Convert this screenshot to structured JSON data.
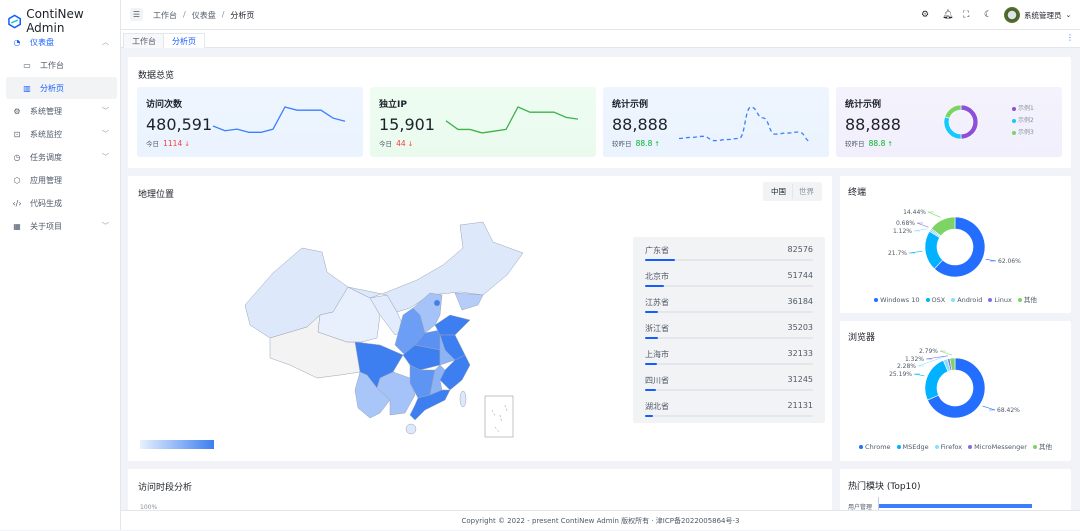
{
  "app": {
    "title": "ContiNew Admin"
  },
  "sidebar": {
    "items": [
      {
        "label": "仪表盘",
        "icon": "dashboard-icon",
        "expanded": true,
        "active": true
      },
      {
        "label": "工作台",
        "icon": "desktop-icon",
        "sub": true
      },
      {
        "label": "分析页",
        "icon": "bar-chart-icon",
        "sub": true,
        "selected": true
      },
      {
        "label": "系统管理",
        "icon": "settings-icon",
        "chevron": true
      },
      {
        "label": "系统监控",
        "icon": "monitor-icon",
        "chevron": true
      },
      {
        "label": "任务调度",
        "icon": "clock-icon",
        "chevron": true
      },
      {
        "label": "应用管理",
        "icon": "cube-icon"
      },
      {
        "label": "代码生成",
        "icon": "code-icon"
      },
      {
        "label": "关于项目",
        "icon": "apps-icon",
        "chevron": true
      }
    ]
  },
  "header": {
    "breadcrumb": [
      "工作台",
      "仪表盘",
      "分析页"
    ],
    "separator": "/",
    "user": "系统管理员"
  },
  "tabs": [
    {
      "label": "工作台"
    },
    {
      "label": "分析页",
      "active": true
    }
  ],
  "overview": {
    "title": "数据总览",
    "cards": [
      {
        "title": "访问次数",
        "value": "480,591",
        "sub_label": "今日",
        "sub_value": "1114",
        "trend": "down",
        "color": "#3c7eff",
        "bg": "#eaf3fe",
        "spark": [
          12,
          9,
          10,
          8,
          8,
          10,
          24,
          22,
          22,
          22,
          17,
          15
        ]
      },
      {
        "title": "独立IP",
        "value": "15,901",
        "sub_label": "今日",
        "sub_value": "44",
        "trend": "down",
        "color": "#3fb24a",
        "bg": "#eafbee",
        "spark": [
          14,
          9,
          9,
          7,
          8,
          9,
          22,
          19,
          19,
          19,
          16,
          15
        ]
      },
      {
        "title": "统计示例",
        "value": "88,888",
        "sub_label": "较昨日",
        "sub_value": "88.8",
        "trend": "up",
        "color": "#3c7eff",
        "bg": "#eaf3fe",
        "spark": [
          6,
          7,
          8,
          4,
          5,
          6,
          35,
          25,
          10,
          11,
          12,
          3
        ]
      },
      {
        "title": "统计示例",
        "value": "88,888",
        "sub_label": "较昨日",
        "sub_value": "88.8",
        "trend": "up",
        "bg": "#f1effc",
        "donut": [
          {
            "name": "示例1",
            "value": 50,
            "color": "#8d4eda"
          },
          {
            "name": "示例2",
            "value": 30,
            "color": "#14c9fe"
          },
          {
            "name": "示例3",
            "value": 20,
            "color": "#7bd463"
          }
        ]
      }
    ]
  },
  "geo": {
    "title": "地理位置",
    "toggle": [
      "中国",
      "世界"
    ],
    "toggle_active": "中国",
    "ranking": [
      {
        "name": "广东省",
        "value": 82576
      },
      {
        "name": "北京市",
        "value": 51744
      },
      {
        "name": "江苏省",
        "value": 36184
      },
      {
        "name": "浙江省",
        "value": 35203
      },
      {
        "name": "上海市",
        "value": 32133
      },
      {
        "name": "四川省",
        "value": 31245
      },
      {
        "name": "湖北省",
        "value": 21131
      }
    ],
    "ranking_max": 460000
  },
  "terminal": {
    "title": "终端",
    "slices": [
      {
        "name": "Windows 10",
        "value": 62.06,
        "label": "62.06%",
        "color": "#246eff"
      },
      {
        "name": "OSX",
        "value": 21.7,
        "label": "21.7%",
        "color": "#00b2ff"
      },
      {
        "name": "Android",
        "value": 1.12,
        "label": "1.12%",
        "color": "#81e2ff"
      },
      {
        "name": "Linux",
        "value": 0.68,
        "label": "0.68%",
        "color": "#846be2"
      },
      {
        "name": "其他",
        "value": 14.44,
        "label": "14.44%",
        "color": "#7bd463"
      }
    ]
  },
  "browser": {
    "title": "浏览器",
    "slices": [
      {
        "name": "Chrome",
        "value": 68.42,
        "label": "68.42%",
        "color": "#246eff"
      },
      {
        "name": "MSEdge",
        "value": 25.19,
        "label": "25.19%",
        "color": "#00b2ff"
      },
      {
        "name": "Firefox",
        "value": 2.28,
        "label": "2.28%",
        "color": "#81e2ff"
      },
      {
        "name": "MicroMessenger",
        "value": 1.32,
        "label": "1.32%",
        "color": "#846be2"
      },
      {
        "name": "其他",
        "value": 2.79,
        "label": "2.79%",
        "color": "#7bd463"
      }
    ]
  },
  "time_analysis": {
    "title": "访问时段分析",
    "y_tick": "100%"
  },
  "hot_modules": {
    "title": "热门模块 (Top10)",
    "first": {
      "name": "用户管理",
      "fraction": 0.75
    }
  },
  "footer": {
    "text": "Copyright © 2022 - present ContiNew Admin 版权所有 · 津ICP备2022005864号-3"
  }
}
